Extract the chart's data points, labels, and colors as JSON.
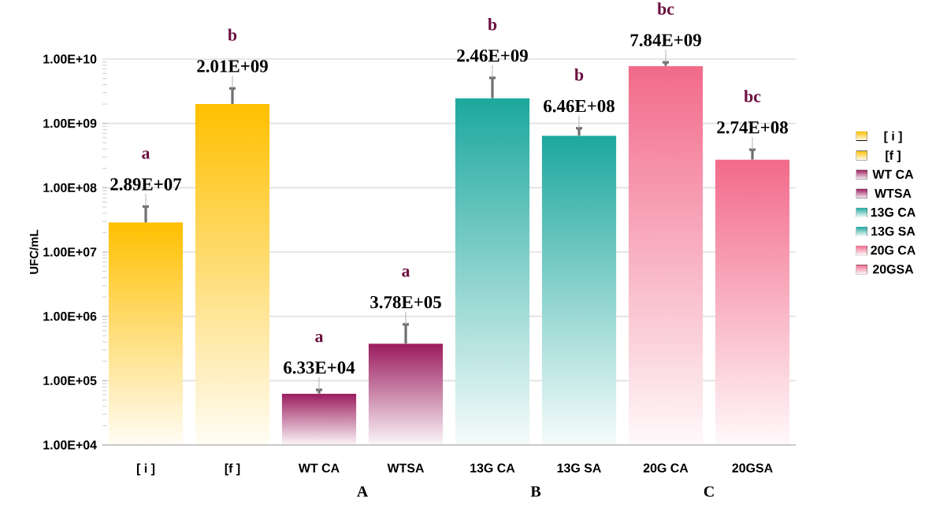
{
  "chart_data": {
    "type": "bar",
    "ylabel": "UFC/mL",
    "log": true,
    "grid": "y",
    "legend": "right",
    "ylim": [
      10000,
      10000000000
    ],
    "yticks": [
      {
        "value": 10000,
        "label": "1.00E+04"
      },
      {
        "value": 100000,
        "label": "1.00E+05"
      },
      {
        "value": 1000000,
        "label": "1.00E+06"
      },
      {
        "value": 10000000,
        "label": "1.00E+07"
      },
      {
        "value": 100000000,
        "label": "1.00E+08"
      },
      {
        "value": 1000000000,
        "label": "1.00E+09"
      },
      {
        "value": 10000000000,
        "label": "1.00E+10"
      }
    ],
    "categories": [
      "[ i ]",
      "[f ]",
      "WT CA",
      "WTSA",
      "13G CA",
      "13G SA",
      "20G CA",
      "20GSA"
    ],
    "series": [
      {
        "name": "[ i ]",
        "color": "#ffc000",
        "values": [
          28900000,
          null,
          null,
          null,
          null,
          null,
          null,
          null
        ],
        "errors": [
          [
            28900000,
            51000000
          ],
          null,
          null,
          null,
          null,
          null,
          null,
          null
        ],
        "value_labels": [
          "2.89E+07",
          null,
          null,
          null,
          null,
          null,
          null,
          null
        ]
      },
      {
        "name": "[f ]",
        "color": "#ffc000",
        "values": [
          null,
          2010000000,
          null,
          null,
          null,
          null,
          null,
          null
        ],
        "errors": [
          null,
          [
            2010000000,
            3500000000
          ],
          null,
          null,
          null,
          null,
          null,
          null
        ],
        "value_labels": [
          null,
          "2.01E+09",
          null,
          null,
          null,
          null,
          null,
          null
        ]
      },
      {
        "name": "WT CA",
        "color": "#9b1b5e",
        "values": [
          null,
          null,
          63300,
          null,
          null,
          null,
          null,
          null
        ],
        "errors": [
          null,
          null,
          [
            63300,
            72000
          ],
          null,
          null,
          null,
          null,
          null
        ],
        "value_labels": [
          null,
          null,
          "6.33E+04",
          null,
          null,
          null,
          null,
          null
        ]
      },
      {
        "name": "WTSA",
        "color": "#9b1b5e",
        "values": [
          null,
          null,
          null,
          378000,
          null,
          null,
          null,
          null
        ],
        "errors": [
          null,
          null,
          null,
          [
            378000,
            750000
          ],
          null,
          null,
          null,
          null
        ],
        "value_labels": [
          null,
          null,
          null,
          "3.78E+05",
          null,
          null,
          null,
          null
        ]
      },
      {
        "name": "13G CA",
        "color": "#1ca89e",
        "values": [
          null,
          null,
          null,
          null,
          2460000000,
          null,
          null,
          null
        ],
        "errors": [
          null,
          null,
          null,
          null,
          [
            2460000000,
            5100000000
          ],
          null,
          null,
          null
        ],
        "value_labels": [
          null,
          null,
          null,
          null,
          "2.46E+09",
          null,
          null,
          null
        ]
      },
      {
        "name": "13G SA",
        "color": "#1ca89e",
        "values": [
          null,
          null,
          null,
          null,
          null,
          646000000,
          null,
          null
        ],
        "errors": [
          null,
          null,
          null,
          null,
          null,
          [
            646000000,
            840000000
          ],
          null,
          null
        ],
        "value_labels": [
          null,
          null,
          null,
          null,
          null,
          "6.46E+08",
          null,
          null
        ]
      },
      {
        "name": "20G CA",
        "color": "#f26a8a",
        "values": [
          null,
          null,
          null,
          null,
          null,
          null,
          7840000000,
          null
        ],
        "errors": [
          null,
          null,
          null,
          null,
          null,
          null,
          [
            7840000000,
            8900000000
          ],
          null
        ],
        "value_labels": [
          null,
          null,
          null,
          null,
          null,
          null,
          "7.84E+09",
          null
        ]
      },
      {
        "name": "20GSA",
        "color": "#f26a8a",
        "values": [
          null,
          null,
          null,
          null,
          null,
          null,
          null,
          274000000
        ],
        "errors": [
          null,
          null,
          null,
          null,
          null,
          null,
          null,
          [
            274000000,
            390000000
          ]
        ],
        "value_labels": [
          null,
          null,
          null,
          null,
          null,
          null,
          null,
          "2.74E+08"
        ]
      }
    ],
    "annotations": [
      "a",
      "b",
      "a",
      "a",
      "b",
      "b",
      "bc",
      "bc",
      "A",
      "B",
      "C"
    ]
  }
}
